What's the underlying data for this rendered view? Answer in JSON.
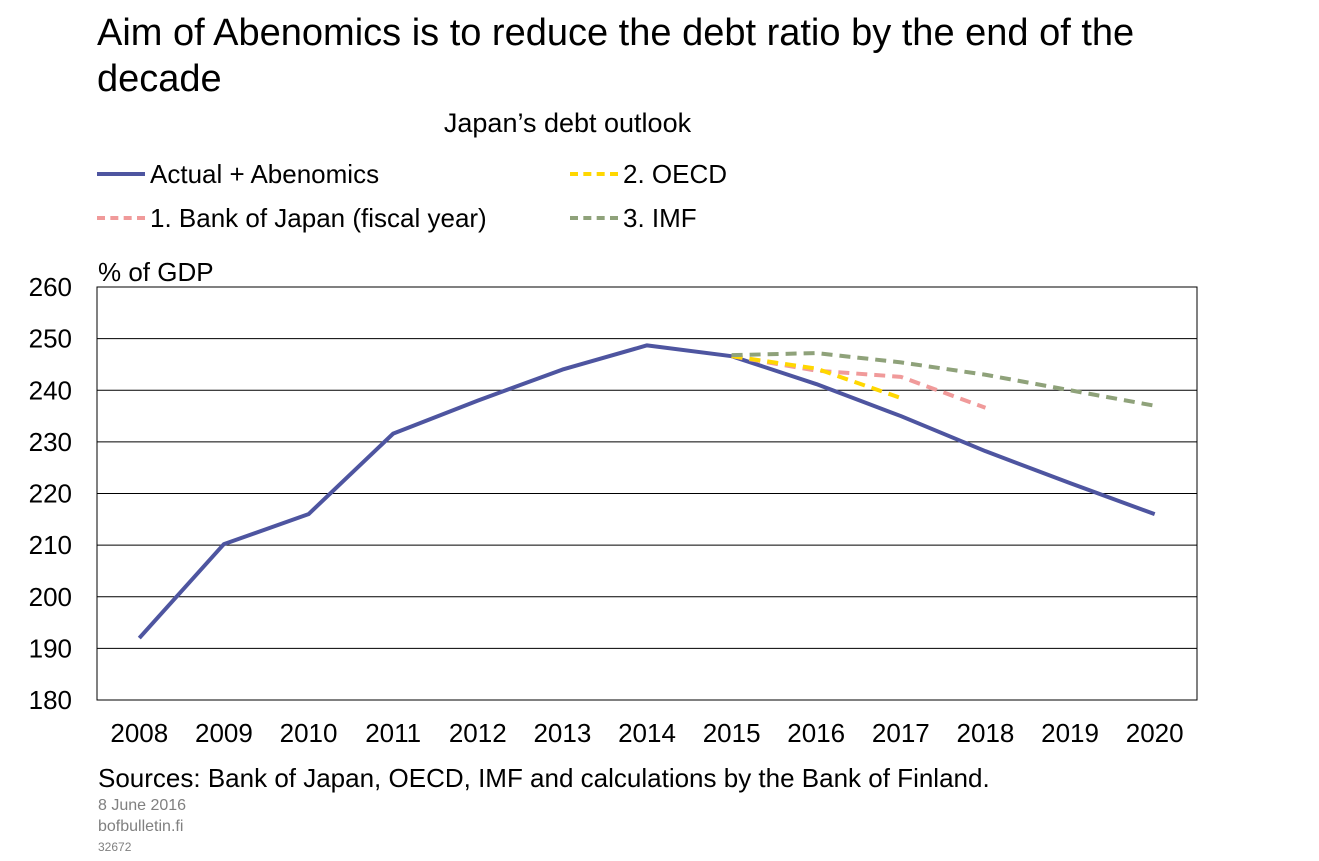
{
  "title": "Aim of Abenomics is to reduce the debt ratio by the end of the decade",
  "footer": {
    "sources": "Sources: Bank of Japan, OECD, IMF and calculations by the Bank of Finland.",
    "date": "8 June 2016",
    "site": "bofbulletin.fi",
    "id": "32672"
  },
  "chart_data": {
    "type": "line",
    "title": "Japan’s debt outlook",
    "ylabel": "% of GDP",
    "xlabel": "",
    "ylim": [
      180,
      260
    ],
    "yticks": [
      180,
      190,
      200,
      210,
      220,
      230,
      240,
      250,
      260
    ],
    "categories": [
      "2008",
      "2009",
      "2010",
      "2011",
      "2012",
      "2013",
      "2014",
      "2015",
      "2016",
      "2017",
      "2018",
      "2019",
      "2020"
    ],
    "grid": true,
    "legend_position": "top",
    "series": [
      {
        "name": "Actual + Abenomics",
        "color": "#4e55a0",
        "style": "solid",
        "values": [
          192,
          210.2,
          216,
          231.6,
          238,
          244,
          248.7,
          246.6,
          241.2,
          235,
          228.2,
          222,
          216
        ]
      },
      {
        "name": "1. Bank of Japan (fiscal year)",
        "color": "#f09a9a",
        "style": "dashed",
        "values": [
          null,
          null,
          null,
          null,
          null,
          null,
          null,
          246.6,
          243.8,
          242.6,
          236.6,
          null,
          null
        ]
      },
      {
        "name": "2. OECD",
        "color": "#ffd700",
        "style": "dashed",
        "values": [
          null,
          null,
          null,
          null,
          null,
          null,
          null,
          246.6,
          244.2,
          238.5,
          null,
          null,
          null
        ]
      },
      {
        "name": "3. IMF",
        "color": "#8fa27a",
        "style": "dashed",
        "values": [
          null,
          null,
          null,
          null,
          null,
          null,
          null,
          246.8,
          247.2,
          245.4,
          243,
          240,
          237
        ]
      }
    ]
  }
}
